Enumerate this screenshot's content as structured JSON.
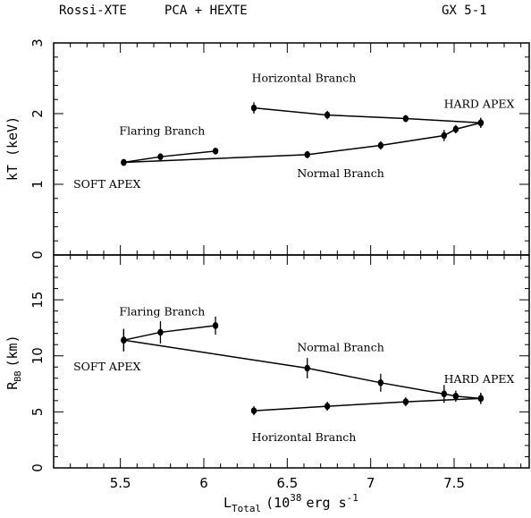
{
  "header": {
    "left": "Rossi-XTE",
    "center": "PCA + HEXTE",
    "right": "GX 5-1"
  },
  "chart_data": [
    {
      "type": "line",
      "panel": "top",
      "ylabel": "kT (keV)",
      "ylim": [
        0,
        3
      ],
      "xlim": [
        5.1,
        7.95
      ],
      "yticks": [
        "0",
        "1",
        "2",
        "3"
      ],
      "series": [
        {
          "x": [
            6.3,
            6.74,
            7.21,
            7.66
          ],
          "y": [
            2.08,
            1.98,
            1.93,
            1.87
          ],
          "yerr": [
            0.08,
            0.06,
            0.05,
            0.07
          ]
        },
        {
          "x": [
            7.66,
            7.51,
            7.44,
            7.06,
            6.62,
            5.52
          ],
          "y": [
            1.87,
            1.78,
            1.69,
            1.55,
            1.42,
            1.31
          ],
          "yerr": [
            0.07,
            0.06,
            0.08,
            0.06,
            0.05,
            0.03
          ]
        },
        {
          "x": [
            5.52,
            5.74,
            6.07
          ],
          "y": [
            1.31,
            1.39,
            1.47
          ],
          "yerr": [
            0.03,
            0.04,
            0.03
          ]
        }
      ],
      "annotations": [
        {
          "text": "Horizontal Branch",
          "x": 6.6,
          "y": 2.45
        },
        {
          "text": "HARD APEX",
          "x": 7.65,
          "y": 2.08
        },
        {
          "text": "Flaring Branch",
          "x": 5.75,
          "y": 1.7
        },
        {
          "text": "SOFT APEX",
          "x": 5.42,
          "y": 0.95
        },
        {
          "text": "Normal Branch",
          "x": 6.82,
          "y": 1.1
        }
      ]
    },
    {
      "type": "line",
      "panel": "bottom",
      "ylabel": "R_BB (km)",
      "ylabel_main": "R",
      "ylabel_sub": "BB",
      "ylabel_tail": "(km)",
      "ylim": [
        0,
        19
      ],
      "xlim": [
        5.1,
        7.95
      ],
      "yticks": [
        "0",
        "5",
        "10",
        "15"
      ],
      "xticks": [
        "5.5",
        "6",
        "6.5",
        "7",
        "7.5"
      ],
      "xlabel_main": "L",
      "xlabel_sub": "Total",
      "xlabel_mid": "(10",
      "xlabel_sup": "38",
      "xlabel_tail": "erg s",
      "xlabel_sup2": "-1",
      "series": [
        {
          "x": [
            5.52,
            5.74,
            6.07
          ],
          "y": [
            11.4,
            12.1,
            12.7
          ],
          "yerr": [
            1.0,
            1.0,
            0.8
          ]
        },
        {
          "x": [
            5.52,
            6.62,
            7.06,
            7.44,
            7.51,
            7.66
          ],
          "y": [
            11.4,
            8.9,
            7.6,
            6.6,
            6.4,
            6.2
          ],
          "yerr": [
            1.0,
            0.9,
            0.8,
            0.8,
            0.5,
            0.5
          ]
        },
        {
          "x": [
            6.3,
            6.74,
            7.21,
            7.66
          ],
          "y": [
            5.1,
            5.5,
            5.9,
            6.2
          ],
          "yerr": [
            0.4,
            0.4,
            0.4,
            0.5
          ]
        }
      ],
      "annotations": [
        {
          "text": "Flaring Branch",
          "x": 5.75,
          "y": 13.6
        },
        {
          "text": "Normal Branch",
          "x": 6.82,
          "y": 10.4
        },
        {
          "text": "SOFT APEX",
          "x": 5.42,
          "y": 8.7
        },
        {
          "text": "HARD APEX",
          "x": 7.65,
          "y": 7.6
        },
        {
          "text": "Horizontal Branch",
          "x": 6.6,
          "y": 2.4
        }
      ]
    }
  ]
}
